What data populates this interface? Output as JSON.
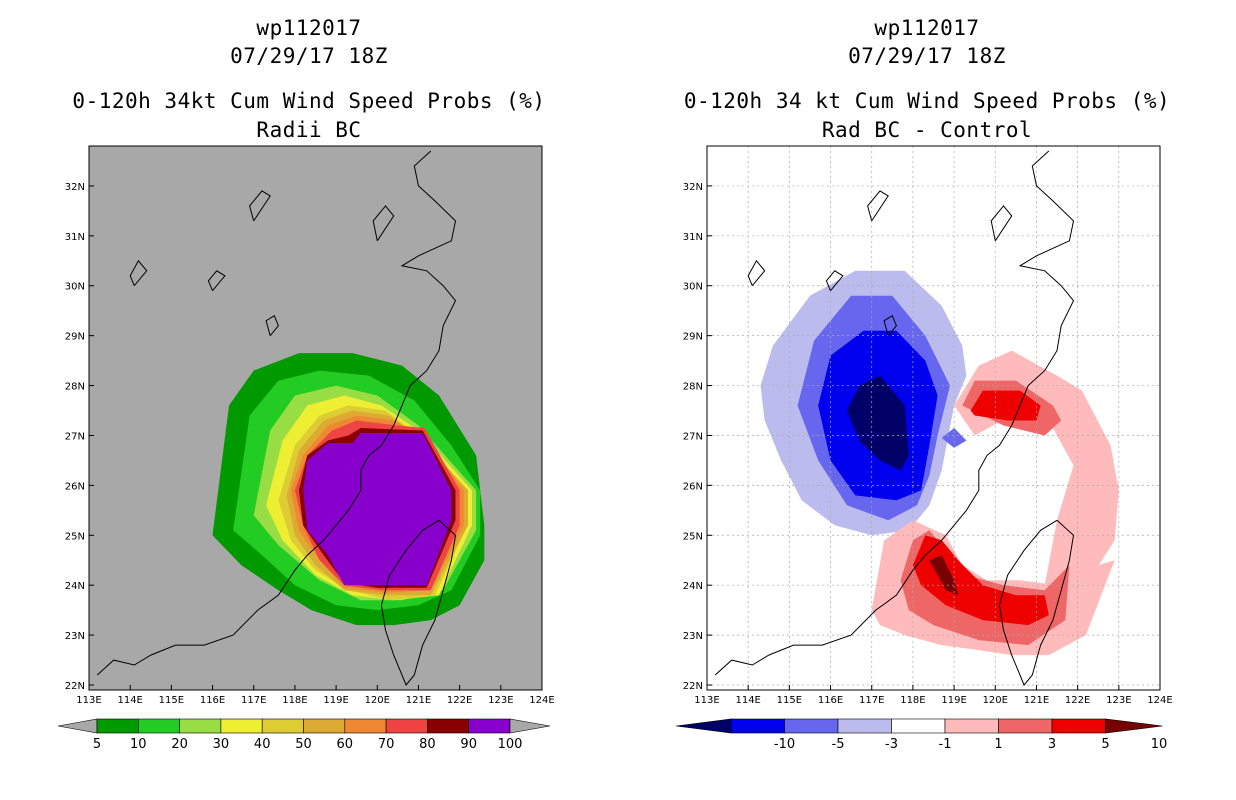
{
  "chart_data": [
    {
      "type": "heatmap",
      "storm_id": "wp112017",
      "datetime": "07/29/17 18Z",
      "title": "0-120h 34kt Cum Wind Speed Probs (%)",
      "subtitle": "Radii BC",
      "x_ticks": [
        "113E",
        "114E",
        "115E",
        "116E",
        "117E",
        "118E",
        "119E",
        "120E",
        "121E",
        "122E",
        "123E",
        "124E"
      ],
      "y_ticks": [
        "22N",
        "23N",
        "24N",
        "25N",
        "26N",
        "27N",
        "28N",
        "29N",
        "30N",
        "31N",
        "32N"
      ],
      "xlim": [
        113,
        124
      ],
      "ylim": [
        21.9,
        32.8
      ],
      "colorbar_labels": [
        "5",
        "10",
        "20",
        "30",
        "40",
        "50",
        "60",
        "70",
        "80",
        "90",
        "100"
      ],
      "colorbar_colors": [
        "#009900",
        "#22cc22",
        "#99dd44",
        "#eeee33",
        "#ddcc33",
        "#ddaa33",
        "#ee8833",
        "#ee4444",
        "#880000",
        "#8800cc"
      ],
      "colors": {
        "background": "#a8a8a8"
      },
      "contours": [
        {
          "level": "5-10",
          "color": "#009900",
          "lon": [
            116.0,
            116.4,
            117.0,
            118.1,
            119.4,
            120.6,
            121.5,
            122.4,
            122.6,
            122.6,
            122.0,
            121.3,
            120.4,
            119.5,
            118.4,
            117.6,
            116.7,
            116.0
          ],
          "lat": [
            25.0,
            27.6,
            28.3,
            28.65,
            28.65,
            28.4,
            27.8,
            26.6,
            25.2,
            24.5,
            23.6,
            23.3,
            23.2,
            23.2,
            23.5,
            23.9,
            24.4,
            25.0
          ]
        },
        {
          "level": "10-20",
          "color": "#22cc22",
          "lon": [
            116.5,
            116.9,
            117.6,
            118.6,
            119.8,
            120.9,
            121.8,
            122.5,
            122.5,
            121.8,
            121.0,
            120.0,
            119.0,
            118.0,
            117.2,
            116.5
          ],
          "lat": [
            25.1,
            27.4,
            28.1,
            28.3,
            28.2,
            27.7,
            26.8,
            25.9,
            25.0,
            23.9,
            23.6,
            23.5,
            23.6,
            24.0,
            24.6,
            25.1
          ]
        },
        {
          "level": "20-30",
          "color": "#99dd44",
          "lon": [
            117.0,
            117.4,
            118.0,
            119.0,
            120.0,
            121.0,
            122.4,
            122.4,
            121.6,
            120.6,
            119.6,
            118.6,
            117.6,
            117.0
          ],
          "lat": [
            25.4,
            27.1,
            27.8,
            28.0,
            27.8,
            27.2,
            25.9,
            25.1,
            23.9,
            23.7,
            23.7,
            24.1,
            24.8,
            25.4
          ]
        },
        {
          "level": "30-40",
          "color": "#eeee33",
          "lon": [
            117.3,
            117.7,
            118.3,
            119.2,
            120.1,
            121.0,
            122.3,
            122.3,
            121.5,
            120.4,
            119.4,
            118.5,
            117.7,
            117.3
          ],
          "lat": [
            25.6,
            26.9,
            27.6,
            27.8,
            27.6,
            27.1,
            25.9,
            25.2,
            23.8,
            23.7,
            23.8,
            24.2,
            24.9,
            25.6
          ]
        },
        {
          "level": "40-50",
          "color": "#ddcc33",
          "lon": [
            117.6,
            118.0,
            118.6,
            119.3,
            120.2,
            121.0,
            122.2,
            122.2,
            121.4,
            120.3,
            119.3,
            118.5,
            117.9,
            117.6
          ],
          "lat": [
            25.7,
            26.8,
            27.4,
            27.6,
            27.5,
            27.0,
            25.9,
            25.2,
            23.8,
            23.7,
            23.9,
            24.3,
            24.9,
            25.7
          ]
        },
        {
          "level": "50-60",
          "color": "#ddaa33",
          "lon": [
            117.8,
            118.1,
            118.7,
            119.4,
            120.3,
            121.1,
            122.2,
            122.2,
            121.3,
            120.2,
            119.2,
            118.5,
            118.0,
            117.8
          ],
          "lat": [
            25.8,
            26.7,
            27.3,
            27.5,
            27.4,
            26.9,
            25.9,
            25.2,
            23.8,
            23.8,
            23.9,
            24.4,
            25.0,
            25.8
          ]
        },
        {
          "level": "60-70",
          "color": "#ee8833",
          "lon": [
            117.9,
            118.2,
            118.8,
            119.5,
            120.4,
            121.1,
            122.1,
            122.1,
            121.3,
            120.2,
            119.2,
            118.6,
            118.1,
            117.9
          ],
          "lat": [
            25.9,
            26.6,
            27.2,
            27.4,
            27.3,
            27.0,
            25.9,
            25.2,
            23.9,
            23.85,
            23.95,
            24.5,
            25.1,
            25.9
          ]
        },
        {
          "level": "70-80",
          "color": "#ee4444",
          "lon": [
            118.0,
            118.3,
            118.9,
            119.5,
            120.5,
            121.15,
            122.0,
            122.0,
            121.3,
            120.1,
            119.2,
            118.6,
            118.2,
            118.0
          ],
          "lat": [
            25.9,
            26.6,
            27.1,
            27.3,
            27.2,
            27.15,
            25.9,
            25.2,
            23.9,
            23.9,
            24.0,
            24.5,
            25.2,
            25.9
          ]
        },
        {
          "level": "80-90",
          "color": "#880000",
          "lon": [
            118.1,
            118.3,
            118.8,
            119.3,
            119.6,
            121.1,
            121.9,
            121.9,
            121.2,
            120.0,
            119.2,
            118.7,
            118.2,
            118.1
          ],
          "lat": [
            25.9,
            26.6,
            26.9,
            27.0,
            27.15,
            27.1,
            25.9,
            25.3,
            23.95,
            23.95,
            24.05,
            24.6,
            25.2,
            25.9
          ]
        },
        {
          "level": "90-100",
          "color": "#8800cc",
          "lon": [
            118.2,
            118.3,
            118.8,
            119.4,
            119.6,
            121.1,
            121.8,
            121.8,
            121.2,
            120.0,
            119.2,
            118.8,
            118.3,
            118.2
          ],
          "lat": [
            25.9,
            26.5,
            26.85,
            26.85,
            27.05,
            27.05,
            25.9,
            25.3,
            24.0,
            24.0,
            24.0,
            24.6,
            25.1,
            25.9
          ]
        }
      ]
    },
    {
      "type": "heatmap",
      "storm_id": "wp112017",
      "datetime": "07/29/17 18Z",
      "title": "0-120h 34 kt Cum Wind Speed Probs (%)",
      "subtitle": "Rad BC - Control",
      "x_ticks": [
        "113E",
        "114E",
        "115E",
        "116E",
        "117E",
        "118E",
        "119E",
        "120E",
        "121E",
        "122E",
        "123E",
        "124E"
      ],
      "y_ticks": [
        "22N",
        "23N",
        "24N",
        "25N",
        "26N",
        "27N",
        "28N",
        "29N",
        "30N",
        "31N",
        "32N"
      ],
      "xlim": [
        113,
        124
      ],
      "ylim": [
        21.9,
        32.8
      ],
      "colorbar_labels": [
        "-10",
        "-5",
        "-3",
        "-1",
        "1",
        "3",
        "5",
        "10"
      ],
      "colorbar_colors": [
        "#000066",
        "#0000ee",
        "#6666ee",
        "#bbbbee",
        "#ffffff",
        "#ffbbbb",
        "#ee6666",
        "#ee0000",
        "#770000"
      ],
      "colors": {
        "background": "#ffffff"
      },
      "contours": [
        {
          "level": "-3 to -1",
          "color": "#bbbbee",
          "lon": [
            114.3,
            114.6,
            115.5,
            116.6,
            117.8,
            118.7,
            119.2,
            119.3,
            119.0,
            118.7,
            118.4,
            117.9,
            117.0,
            116.1,
            115.3,
            114.8,
            114.4,
            114.3
          ],
          "lat": [
            28.0,
            28.8,
            29.8,
            30.3,
            30.3,
            29.6,
            28.8,
            28.2,
            27.6,
            26.3,
            25.6,
            25.1,
            25.0,
            25.2,
            25.7,
            26.5,
            27.3,
            28.0
          ]
        },
        {
          "level": "-5 to -3",
          "color": "#6666ee",
          "lon": [
            115.2,
            115.6,
            116.5,
            117.5,
            118.3,
            118.9,
            118.6,
            118.4,
            118.1,
            117.4,
            116.4,
            115.7,
            115.2
          ],
          "lat": [
            27.6,
            28.9,
            29.8,
            29.8,
            29.0,
            28.0,
            27.0,
            26.2,
            25.6,
            25.3,
            25.6,
            26.5,
            27.6
          ]
        },
        {
          "level": "-10 to -5",
          "color": "#0000ee",
          "lon": [
            115.7,
            116.0,
            116.8,
            117.6,
            118.3,
            118.6,
            118.4,
            118.2,
            117.6,
            116.6,
            116.0,
            115.7
          ],
          "lat": [
            27.6,
            28.6,
            29.1,
            29.1,
            28.5,
            27.8,
            26.8,
            25.9,
            25.7,
            25.8,
            26.5,
            27.6
          ]
        },
        {
          "level": "< -10",
          "color": "#000066",
          "lon": [
            116.4,
            116.7,
            117.2,
            117.8,
            117.9,
            117.7,
            117.2,
            116.7,
            116.4
          ],
          "lat": [
            27.5,
            28.0,
            28.2,
            27.6,
            26.6,
            26.3,
            26.5,
            26.9,
            27.5
          ]
        },
        {
          "level": "-5 to -3 (small)",
          "color": "#6666ee",
          "lon": [
            118.7,
            119.0,
            119.3,
            119.0,
            118.7
          ],
          "lat": [
            26.95,
            27.15,
            26.9,
            26.75,
            26.95
          ]
        },
        {
          "level": "1 to 3 east",
          "color": "#ffbbbb",
          "lon": [
            119.0,
            119.6,
            120.4,
            121.5,
            122.1,
            122.8,
            123.0,
            122.9,
            122.2,
            121.6,
            121.2,
            121.5,
            121.9,
            121.3,
            120.4,
            119.5,
            119.0
          ],
          "lat": [
            27.6,
            28.4,
            28.7,
            28.2,
            27.9,
            26.8,
            25.9,
            24.9,
            24.0,
            23.6,
            24.0,
            25.3,
            26.4,
            27.3,
            27.4,
            27.0,
            27.6
          ]
        },
        {
          "level": "1 to 3 south",
          "color": "#ffbbbb",
          "lon": [
            117.0,
            117.3,
            118.0,
            118.8,
            119.2,
            119.8,
            120.6,
            121.5,
            122.1,
            122.9,
            122.2,
            121.3,
            120.4,
            119.6,
            118.7,
            117.8,
            117.2,
            117.0
          ],
          "lat": [
            23.5,
            24.9,
            25.3,
            25.0,
            24.4,
            24.1,
            24.1,
            24.0,
            24.3,
            24.5,
            23.0,
            22.6,
            22.6,
            22.7,
            22.8,
            23.0,
            23.2,
            23.5
          ]
        },
        {
          "level": "3 to 5",
          "color": "#ee6666",
          "lon": [
            119.2,
            119.5,
            120.5,
            121.4,
            121.6,
            121.2,
            120.2,
            119.2
          ],
          "lat": [
            27.6,
            28.1,
            28.1,
            27.6,
            27.3,
            27.0,
            27.2,
            27.6
          ]
        },
        {
          "level": "3 to 5 south",
          "color": "#ee6666",
          "lon": [
            117.7,
            118.0,
            118.4,
            118.8,
            119.3,
            120.2,
            121.2,
            121.8,
            121.7,
            120.8,
            119.6,
            118.5,
            117.9,
            117.7
          ],
          "lat": [
            24.1,
            24.9,
            25.1,
            24.7,
            24.2,
            24.0,
            23.9,
            24.4,
            23.3,
            22.8,
            22.9,
            23.2,
            23.5,
            24.1
          ]
        },
        {
          "level": "5 to 10",
          "color": "#ee0000",
          "lon": [
            119.4,
            119.7,
            120.6,
            121.1,
            121.0,
            120.3,
            119.5,
            119.4
          ],
          "lat": [
            27.5,
            27.9,
            27.9,
            27.6,
            27.3,
            27.3,
            27.4,
            27.5
          ]
        },
        {
          "level": "5 to 10 south",
          "color": "#ee0000",
          "lon": [
            118.0,
            118.3,
            118.7,
            119.1,
            119.7,
            120.5,
            121.2,
            121.3,
            120.8,
            119.7,
            118.8,
            118.2,
            118.0
          ],
          "lat": [
            24.4,
            25.0,
            24.9,
            24.5,
            24.0,
            23.8,
            23.8,
            23.4,
            23.2,
            23.3,
            23.6,
            24.0,
            24.4
          ]
        },
        {
          "level": "> 10",
          "color": "#770000",
          "lon": [
            118.4,
            118.7,
            119.0,
            119.1,
            118.8,
            118.4
          ],
          "lat": [
            24.5,
            24.6,
            24.1,
            23.8,
            23.9,
            24.5
          ]
        }
      ]
    }
  ]
}
